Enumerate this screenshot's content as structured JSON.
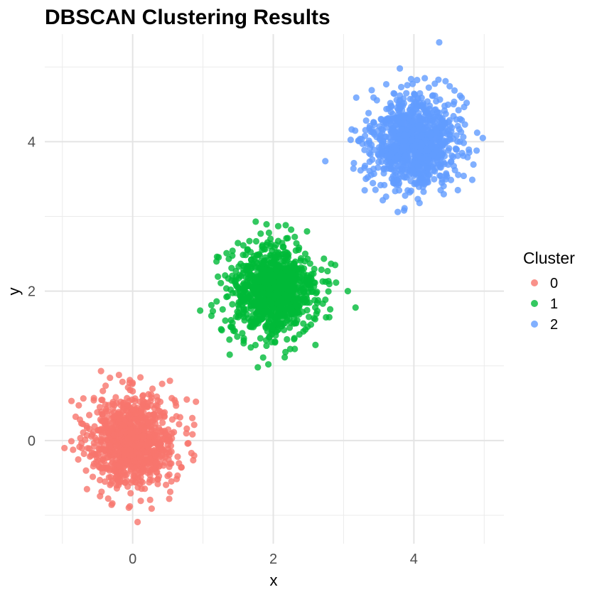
{
  "chart_data": {
    "type": "scatter",
    "title": "DBSCAN Clustering Results",
    "xlabel": "x",
    "ylabel": "y",
    "xlim": [
      -1.25,
      5.28
    ],
    "ylim": [
      -1.38,
      5.44
    ],
    "x_ticks": [
      0,
      2,
      4
    ],
    "y_ticks": [
      0,
      2,
      4
    ],
    "x_minor_ticks": [
      -1,
      1,
      3,
      5
    ],
    "y_minor_ticks": [
      -1,
      1,
      3,
      5
    ],
    "grid": true,
    "legend": {
      "title": "Cluster",
      "placement": "right",
      "entries": [
        {
          "label": "0",
          "color": "#F8766D"
        },
        {
          "label": "1",
          "color": "#00BA38"
        },
        {
          "label": "2",
          "color": "#619CFF"
        }
      ]
    },
    "series": [
      {
        "name": "0",
        "color": "#F8766D",
        "center": [
          0.0,
          0.0
        ],
        "spread": 0.3,
        "n_points": 1000,
        "outliers": [
          {
            "x": -0.97,
            "y": -0.1
          },
          {
            "x": -0.87,
            "y": 0.53
          },
          {
            "x": -0.45,
            "y": 0.93
          },
          {
            "x": -0.3,
            "y": -0.86
          },
          {
            "x": -0.04,
            "y": -0.88
          },
          {
            "x": 0.07,
            "y": -1.09
          },
          {
            "x": 0.27,
            "y": -0.91
          },
          {
            "x": 0.52,
            "y": -0.78
          },
          {
            "x": 0.53,
            "y": 0.8
          },
          {
            "x": 0.77,
            "y": 0.55
          },
          {
            "x": 0.9,
            "y": 0.52
          },
          {
            "x": 0.77,
            "y": 0.16
          },
          {
            "x": -0.65,
            "y": -0.65
          },
          {
            "x": 0.69,
            "y": -0.36
          },
          {
            "x": -0.75,
            "y": 0.28
          }
        ]
      },
      {
        "name": "1",
        "color": "#00BA38",
        "center": [
          2.0,
          2.0
        ],
        "spread": 0.3,
        "n_points": 1000,
        "outliers": [
          {
            "x": 0.96,
            "y": 1.74
          },
          {
            "x": 1.12,
            "y": 1.67
          },
          {
            "x": 1.2,
            "y": 2.46
          },
          {
            "x": 1.75,
            "y": 2.93
          },
          {
            "x": 1.78,
            "y": 0.98
          },
          {
            "x": 1.93,
            "y": 1.02
          },
          {
            "x": 2.07,
            "y": 2.87
          },
          {
            "x": 2.48,
            "y": 2.8
          },
          {
            "x": 2.88,
            "y": 2.35
          },
          {
            "x": 3.06,
            "y": 2.0
          },
          {
            "x": 3.17,
            "y": 1.78
          },
          {
            "x": 2.75,
            "y": 1.65
          },
          {
            "x": 1.38,
            "y": 1.15
          },
          {
            "x": 2.6,
            "y": 1.28
          }
        ]
      },
      {
        "name": "2",
        "color": "#619CFF",
        "center": [
          4.0,
          4.0
        ],
        "spread": 0.3,
        "n_points": 1000,
        "outliers": [
          {
            "x": 2.74,
            "y": 3.74
          },
          {
            "x": 3.14,
            "y": 3.64
          },
          {
            "x": 3.18,
            "y": 4.59
          },
          {
            "x": 3.4,
            "y": 4.69
          },
          {
            "x": 3.8,
            "y": 4.98
          },
          {
            "x": 4.36,
            "y": 5.33
          },
          {
            "x": 4.45,
            "y": 4.81
          },
          {
            "x": 4.98,
            "y": 4.05
          },
          {
            "x": 4.83,
            "y": 3.49
          },
          {
            "x": 3.77,
            "y": 3.06
          },
          {
            "x": 3.86,
            "y": 3.08
          },
          {
            "x": 4.9,
            "y": 4.12
          },
          {
            "x": 4.75,
            "y": 4.52
          },
          {
            "x": 3.3,
            "y": 3.35
          },
          {
            "x": 4.08,
            "y": 3.18
          }
        ]
      }
    ]
  }
}
